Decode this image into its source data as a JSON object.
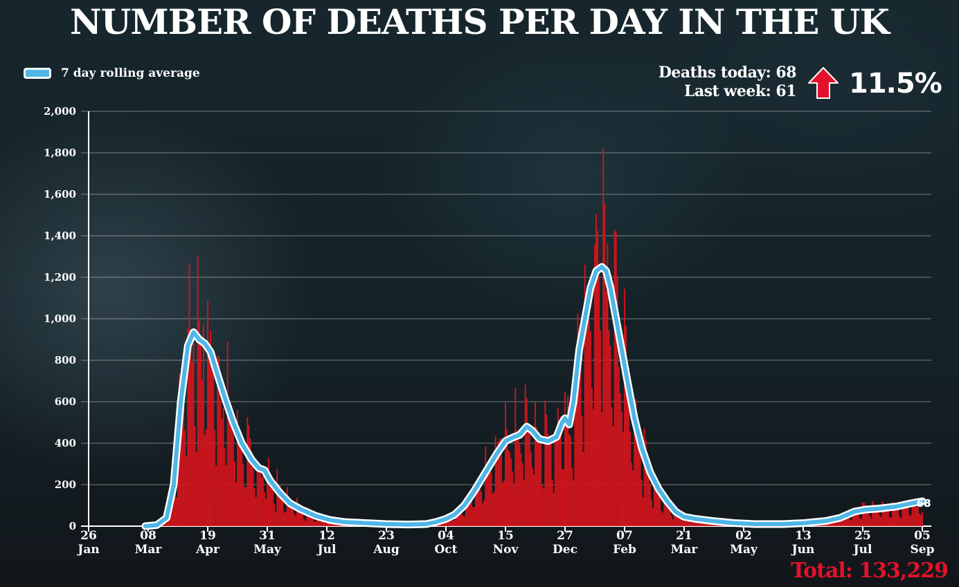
{
  "title": "NUMBER OF DEATHS PER DAY IN THE UK",
  "legend": {
    "label": "7 day rolling average"
  },
  "stats": {
    "deaths_today": "Deaths today: 68",
    "last_week": "Last week: 61",
    "change": "11.5%"
  },
  "total": "Total: 133,229",
  "colors": {
    "bars": "#d8141c",
    "line": "#4fb6e6",
    "line_outline": "#ffffff",
    "arrow": "#e3122a"
  },
  "chart_data": {
    "type": "bar",
    "title": "NUMBER OF DEATHS PER DAY IN THE UK",
    "xlabel": "",
    "ylabel": "",
    "ylim": [
      0,
      2000
    ],
    "yticks": [
      "0",
      "200",
      "400",
      "600",
      "800",
      "1,000",
      "1,200",
      "1,400",
      "1,600",
      "1,800",
      "2,000"
    ],
    "xticks": [
      {
        "day": 0,
        "d": "26",
        "m": "Jan"
      },
      {
        "day": 42,
        "d": "08",
        "m": "Mar"
      },
      {
        "day": 84,
        "d": "19",
        "m": "Apr"
      },
      {
        "day": 126,
        "d": "31",
        "m": "May"
      },
      {
        "day": 168,
        "d": "12",
        "m": "Jul"
      },
      {
        "day": 210,
        "d": "23",
        "m": "Aug"
      },
      {
        "day": 252,
        "d": "04",
        "m": "Oct"
      },
      {
        "day": 294,
        "d": "15",
        "m": "Nov"
      },
      {
        "day": 336,
        "d": "27",
        "m": "Dec"
      },
      {
        "day": 378,
        "d": "07",
        "m": "Feb"
      },
      {
        "day": 420,
        "d": "21",
        "m": "Mar"
      },
      {
        "day": 462,
        "d": "02",
        "m": "May"
      },
      {
        "day": 504,
        "d": "13",
        "m": "Jun"
      },
      {
        "day": 546,
        "d": "25",
        "m": "Jul"
      },
      {
        "day": 588,
        "d": "05",
        "m": "Sep"
      }
    ],
    "rolling_average": {
      "name": "7 day rolling average",
      "points": [
        [
          40,
          0
        ],
        [
          48,
          5
        ],
        [
          55,
          40
        ],
        [
          60,
          200
        ],
        [
          65,
          600
        ],
        [
          70,
          870
        ],
        [
          74,
          935
        ],
        [
          78,
          900
        ],
        [
          82,
          880
        ],
        [
          86,
          840
        ],
        [
          90,
          750
        ],
        [
          96,
          620
        ],
        [
          102,
          500
        ],
        [
          108,
          400
        ],
        [
          115,
          320
        ],
        [
          120,
          280
        ],
        [
          124,
          270
        ],
        [
          128,
          220
        ],
        [
          135,
          160
        ],
        [
          142,
          110
        ],
        [
          150,
          80
        ],
        [
          160,
          50
        ],
        [
          170,
          30
        ],
        [
          180,
          20
        ],
        [
          195,
          15
        ],
        [
          210,
          10
        ],
        [
          225,
          8
        ],
        [
          238,
          10
        ],
        [
          245,
          20
        ],
        [
          252,
          35
        ],
        [
          258,
          55
        ],
        [
          265,
          100
        ],
        [
          272,
          170
        ],
        [
          280,
          260
        ],
        [
          288,
          350
        ],
        [
          294,
          410
        ],
        [
          300,
          430
        ],
        [
          304,
          440
        ],
        [
          309,
          480
        ],
        [
          313,
          460
        ],
        [
          318,
          420
        ],
        [
          324,
          410
        ],
        [
          330,
          430
        ],
        [
          334,
          500
        ],
        [
          336,
          520
        ],
        [
          339,
          490
        ],
        [
          342,
          600
        ],
        [
          346,
          850
        ],
        [
          350,
          1000
        ],
        [
          354,
          1150
        ],
        [
          358,
          1230
        ],
        [
          362,
          1250
        ],
        [
          365,
          1230
        ],
        [
          368,
          1150
        ],
        [
          372,
          1000
        ],
        [
          376,
          850
        ],
        [
          380,
          700
        ],
        [
          385,
          520
        ],
        [
          390,
          380
        ],
        [
          396,
          260
        ],
        [
          402,
          180
        ],
        [
          408,
          120
        ],
        [
          414,
          70
        ],
        [
          420,
          45
        ],
        [
          428,
          35
        ],
        [
          440,
          25
        ],
        [
          455,
          15
        ],
        [
          470,
          10
        ],
        [
          490,
          10
        ],
        [
          505,
          15
        ],
        [
          520,
          25
        ],
        [
          530,
          40
        ],
        [
          540,
          70
        ],
        [
          548,
          80
        ],
        [
          558,
          85
        ],
        [
          570,
          95
        ],
        [
          580,
          110
        ],
        [
          588,
          120
        ]
      ]
    },
    "daily_waves": [
      {
        "center": 80,
        "sigma": 14,
        "peak": 1000
      },
      {
        "center": 305,
        "sigma": 20,
        "peak": 460
      },
      {
        "center": 362,
        "sigma": 16,
        "peak": 1250
      },
      {
        "center": 570,
        "sigma": 40,
        "peak": 110
      }
    ],
    "daily_max": 1820,
    "last_value_label": "68"
  }
}
